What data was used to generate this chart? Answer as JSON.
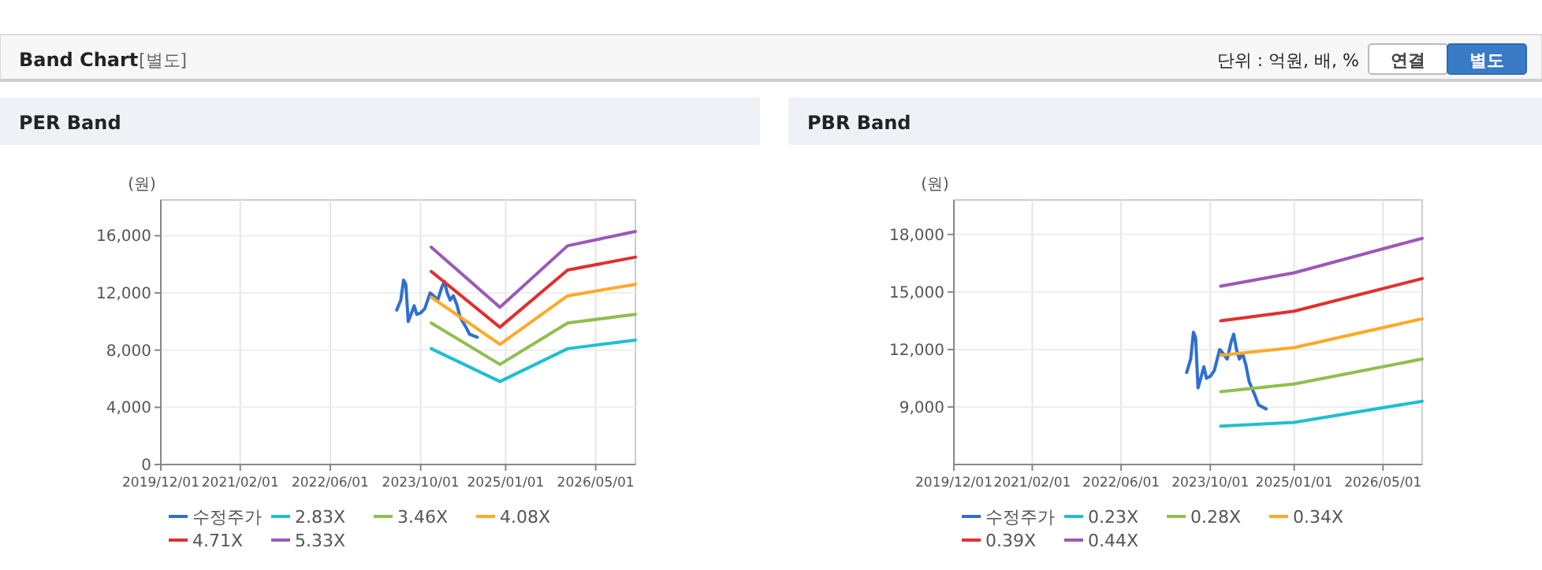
{
  "chart_data": [
    {
      "type": "other",
      "title": "Band Chart",
      "subtitle": "[별도]",
      "annotations": [
        "단위 : 억원, 배, %",
        "연결",
        "별도"
      ]
    },
    {
      "type": "line",
      "title": "PER Band",
      "ylabel": "(원)",
      "xlim": [
        "2019-12-01",
        "2026-12-01"
      ],
      "xticks": [
        {
          "value": "2019-12-01",
          "label": "2019/12/01"
        },
        {
          "value": "2021-02-01",
          "label": "2021/02/01"
        },
        {
          "value": "2022-06-01",
          "label": "2022/06/01"
        },
        {
          "value": "2023-10-01",
          "label": "2023/10/01"
        },
        {
          "value": "2025-01-01",
          "label": "2025/01/01"
        },
        {
          "value": "2026-05-01",
          "label": "2026/05/01"
        }
      ],
      "ylim": [
        0,
        18500
      ],
      "yticks": [
        0,
        {
          "value": 4000,
          "label": "4,000"
        },
        {
          "value": 8000,
          "label": "8,000"
        },
        {
          "value": 12000,
          "label": "12,000"
        },
        {
          "value": 16000,
          "label": "16,000"
        }
      ],
      "grid": true,
      "legend": "bottom",
      "series": [
        {
          "name": "수정주가",
          "color": "#2f6fd1",
          "x": [
            "2023-05-25",
            "2023-06-16",
            "2023-07-01",
            "2023-07-13",
            "2023-07-26",
            "2023-08-10",
            "2023-08-27",
            "2023-09-10",
            "2023-10-01",
            "2023-10-23",
            "2023-11-21",
            "2023-12-10",
            "2024-01-01",
            "2024-01-23",
            "2024-02-06",
            "2024-02-21",
            "2024-03-08",
            "2024-03-25",
            "2024-04-12",
            "2024-05-01",
            "2024-06-01",
            "2024-06-21",
            "2024-08-01"
          ],
          "values": [
            10800,
            11500,
            12900,
            12600,
            10000,
            10500,
            11100,
            10500,
            10600,
            10900,
            12000,
            11800,
            11500,
            12400,
            12800,
            12000,
            11500,
            11800,
            11200,
            10300,
            9600,
            9100,
            8900
          ]
        },
        {
          "name": "2.83X",
          "color": "#1fbfcf",
          "x": [
            "2023-11-27",
            "2024-12-01",
            "2025-12-01",
            "2026-12-01"
          ],
          "values": [
            8100,
            5800,
            8100,
            8700
          ]
        },
        {
          "name": "3.46X",
          "color": "#8fbf4f",
          "x": [
            "2023-11-27",
            "2024-12-01",
            "2025-12-01",
            "2026-12-01"
          ],
          "values": [
            9900,
            7000,
            9900,
            10500
          ]
        },
        {
          "name": "4.08X",
          "color": "#ffa928",
          "x": [
            "2023-11-27",
            "2024-12-01",
            "2025-12-01",
            "2026-12-01"
          ],
          "values": [
            11700,
            8400,
            11800,
            12600
          ]
        },
        {
          "name": "4.71X",
          "color": "#e02f2f",
          "x": [
            "2023-11-27",
            "2024-12-01",
            "2025-12-01",
            "2026-12-01"
          ],
          "values": [
            13500,
            9600,
            13600,
            14500
          ]
        },
        {
          "name": "5.33X",
          "color": "#9b59b6",
          "x": [
            "2023-11-27",
            "2024-12-01",
            "2025-12-01",
            "2026-12-01"
          ],
          "values": [
            15200,
            11000,
            15300,
            16300
          ]
        }
      ]
    },
    {
      "type": "line",
      "title": "PBR Band",
      "ylabel": "(원)",
      "xlim": [
        "2019-12-01",
        "2026-12-01"
      ],
      "xticks": [
        {
          "value": "2019-12-01",
          "label": "2019/12/01"
        },
        {
          "value": "2021-02-01",
          "label": "2021/02/01"
        },
        {
          "value": "2022-06-01",
          "label": "2022/06/01"
        },
        {
          "value": "2023-10-01",
          "label": "2023/10/01"
        },
        {
          "value": "2025-01-01",
          "label": "2025/01/01"
        },
        {
          "value": "2026-05-01",
          "label": "2026/05/01"
        }
      ],
      "ylim": [
        6000,
        19800
      ],
      "yticks": [
        {
          "value": 9000,
          "label": "9,000"
        },
        {
          "value": 12000,
          "label": "12,000"
        },
        {
          "value": 15000,
          "label": "15,000"
        },
        {
          "value": 18000,
          "label": "18,000"
        }
      ],
      "grid": true,
      "legend": "bottom",
      "series": [
        {
          "name": "수정주가",
          "color": "#2f6fd1",
          "x": [
            "2023-05-25",
            "2023-06-16",
            "2023-07-01",
            "2023-07-13",
            "2023-07-26",
            "2023-08-10",
            "2023-08-27",
            "2023-09-10",
            "2023-10-01",
            "2023-10-23",
            "2023-11-21",
            "2023-12-10",
            "2024-01-01",
            "2024-01-23",
            "2024-02-06",
            "2024-02-21",
            "2024-03-08",
            "2024-03-25",
            "2024-04-12",
            "2024-05-01",
            "2024-06-01",
            "2024-06-21",
            "2024-08-01"
          ],
          "values": [
            10800,
            11500,
            12900,
            12600,
            10000,
            10500,
            11100,
            10500,
            10600,
            10900,
            12000,
            11800,
            11500,
            12400,
            12800,
            12000,
            11500,
            11800,
            11200,
            10300,
            9600,
            9100,
            8900
          ]
        },
        {
          "name": "0.23X",
          "color": "#1fbfcf",
          "x": [
            "2023-11-27",
            "2025-01-01",
            "2026-12-01"
          ],
          "values": [
            8000,
            8200,
            9300
          ]
        },
        {
          "name": "0.28X",
          "color": "#8fbf4f",
          "x": [
            "2023-11-27",
            "2025-01-01",
            "2026-12-01"
          ],
          "values": [
            9800,
            10200,
            11500
          ]
        },
        {
          "name": "0.34X",
          "color": "#ffa928",
          "x": [
            "2023-11-27",
            "2025-01-01",
            "2026-12-01"
          ],
          "values": [
            11700,
            12100,
            13600
          ]
        },
        {
          "name": "0.39X",
          "color": "#e02f2f",
          "x": [
            "2023-11-27",
            "2025-01-01",
            "2026-12-01"
          ],
          "values": [
            13500,
            14000,
            15700
          ]
        },
        {
          "name": "0.44X",
          "color": "#9b59b6",
          "x": [
            "2023-11-27",
            "2025-01-01",
            "2026-12-01"
          ],
          "values": [
            15300,
            16000,
            17800
          ]
        }
      ]
    }
  ]
}
